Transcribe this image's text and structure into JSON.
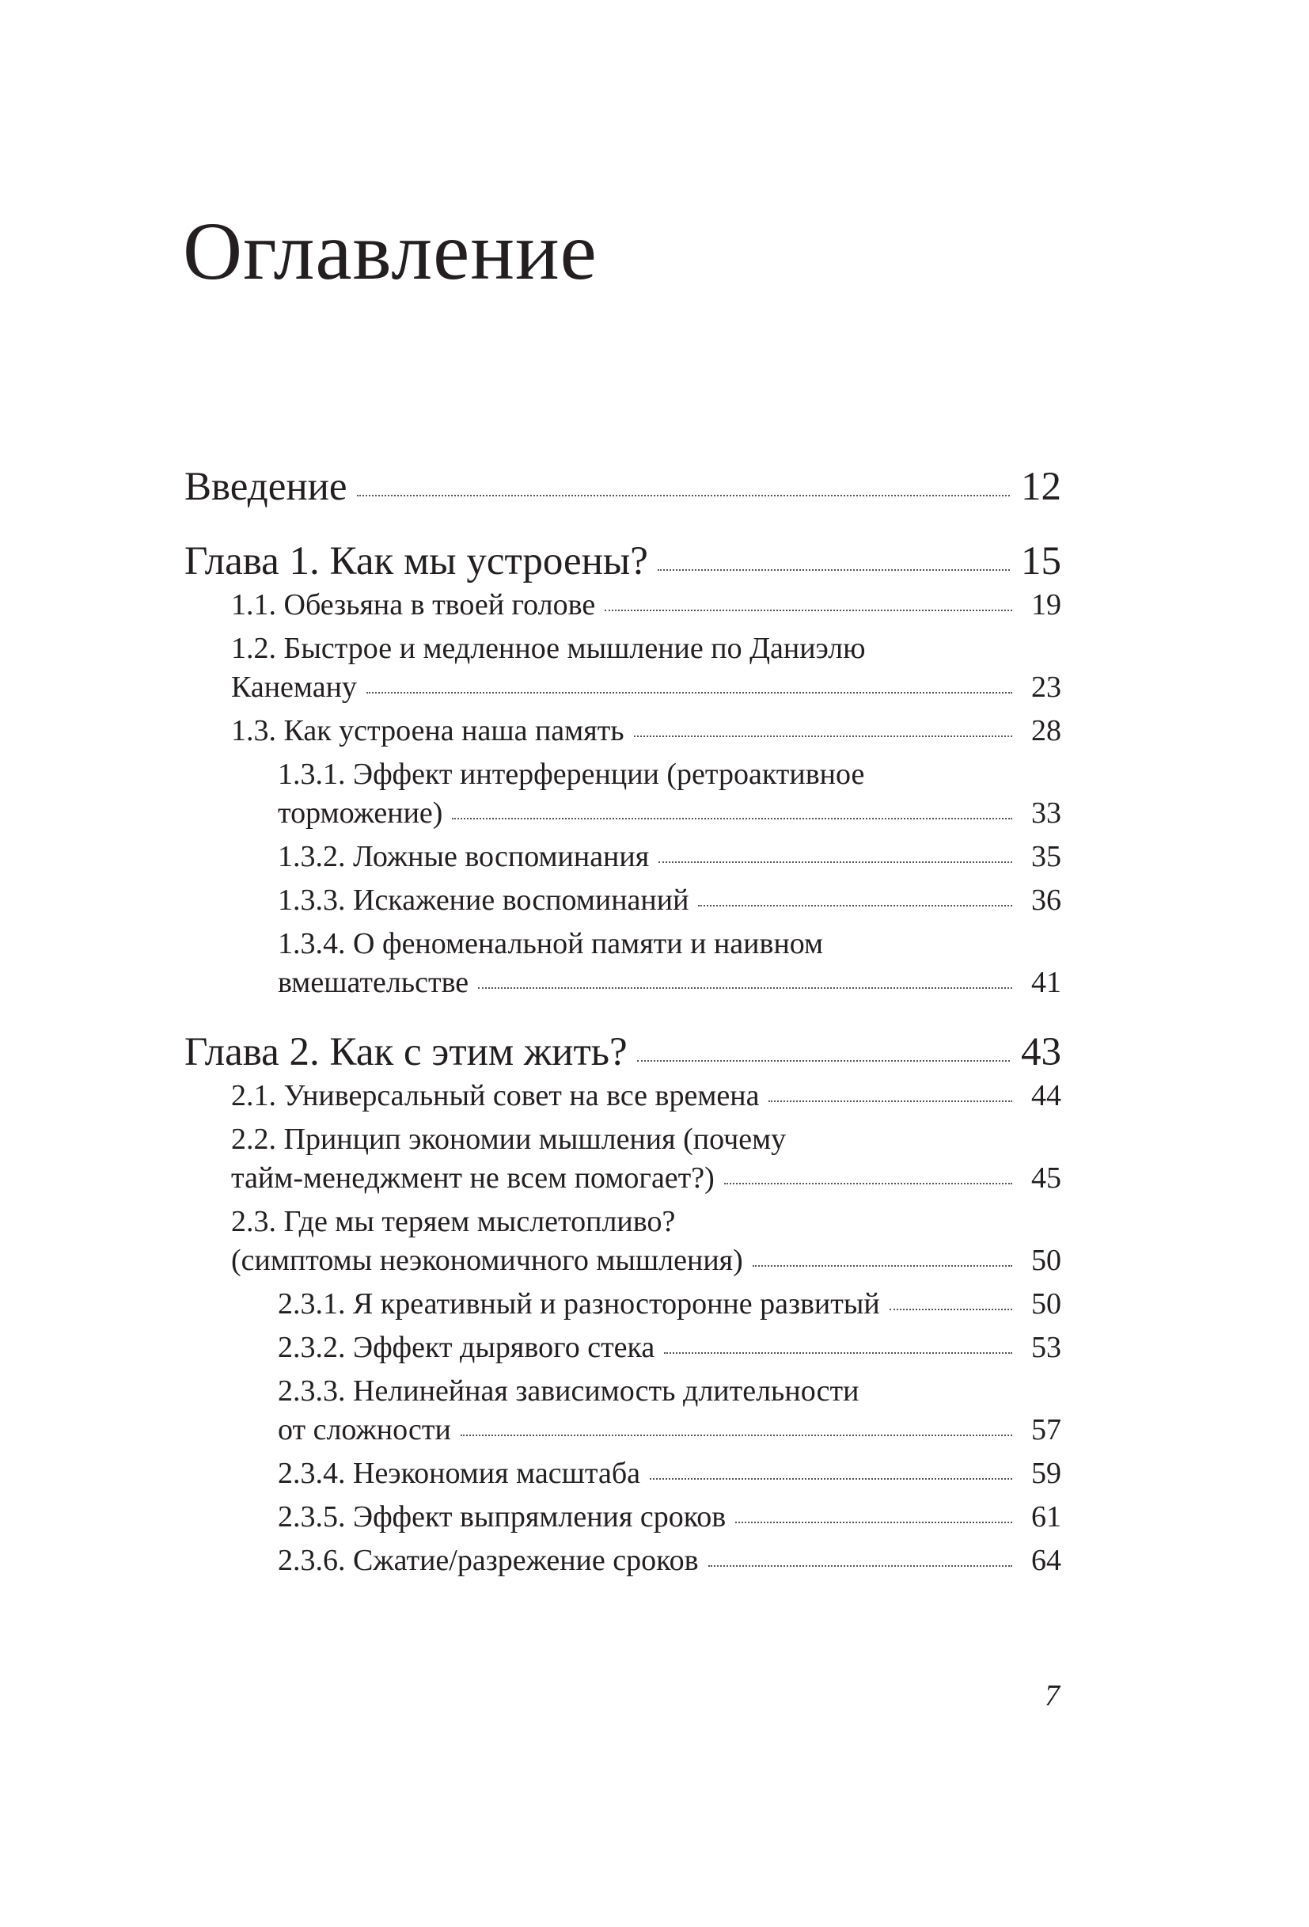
{
  "title": "Оглавление",
  "entries": [
    {
      "level": 0,
      "title": "Введение",
      "page": "12"
    },
    {
      "level": 0,
      "title": "Глава 1. Как мы устроены?",
      "page": "15"
    },
    {
      "level": 1,
      "title": "1.1. Обезьяна в твоей голове",
      "page": "19"
    },
    {
      "level": 1,
      "title": "1.2. Быстрое и медленное мышление по Даниэлю",
      "title_cont": "Канеману",
      "page": "23"
    },
    {
      "level": 1,
      "title": "1.3. Как устроена наша память",
      "page": "28"
    },
    {
      "level": 2,
      "title": "1.3.1. Эффект интерференции (ретроактивное",
      "title_cont": "торможение)",
      "page": "33"
    },
    {
      "level": 2,
      "title": "1.3.2. Ложные воспоминания",
      "page": "35"
    },
    {
      "level": 2,
      "title": "1.3.3. Искажение воспоминаний",
      "page": "36"
    },
    {
      "level": 2,
      "title": "1.3.4. О феноменальной памяти и наивном",
      "title_cont": "вмешательстве",
      "page": "41"
    },
    {
      "level": 0,
      "title": "Глава 2. Как с этим жить?",
      "page": "43"
    },
    {
      "level": 1,
      "title": "2.1. Универсальный совет на все времена",
      "page": "44"
    },
    {
      "level": 1,
      "title": "2.2. Принцип экономии мышления (почему",
      "title_cont": "тайм-менеджмент не всем помогает?)",
      "page": "45"
    },
    {
      "level": 1,
      "title": "2.3. Где мы теряем мыслетопливо?",
      "title_cont": "(симптомы неэкономичного мышления)",
      "page": "50"
    },
    {
      "level": 2,
      "title": "2.3.1. Я креативный и разносторонне развитый",
      "page": "50"
    },
    {
      "level": 2,
      "title": "2.3.2. Эффект дырявого стека",
      "page": "53"
    },
    {
      "level": 2,
      "title": "2.3.3. Нелинейная зависимость длительности",
      "title_cont": "от сложности",
      "page": "57"
    },
    {
      "level": 2,
      "title": "2.3.4. Неэкономия масштаба",
      "page": "59"
    },
    {
      "level": 2,
      "title": "2.3.5. Эффект выпрямления сроков",
      "page": "61"
    },
    {
      "level": 2,
      "title": "2.3.6. Сжатие/разрежение сроков",
      "page": "64"
    }
  ],
  "page_number": "7"
}
